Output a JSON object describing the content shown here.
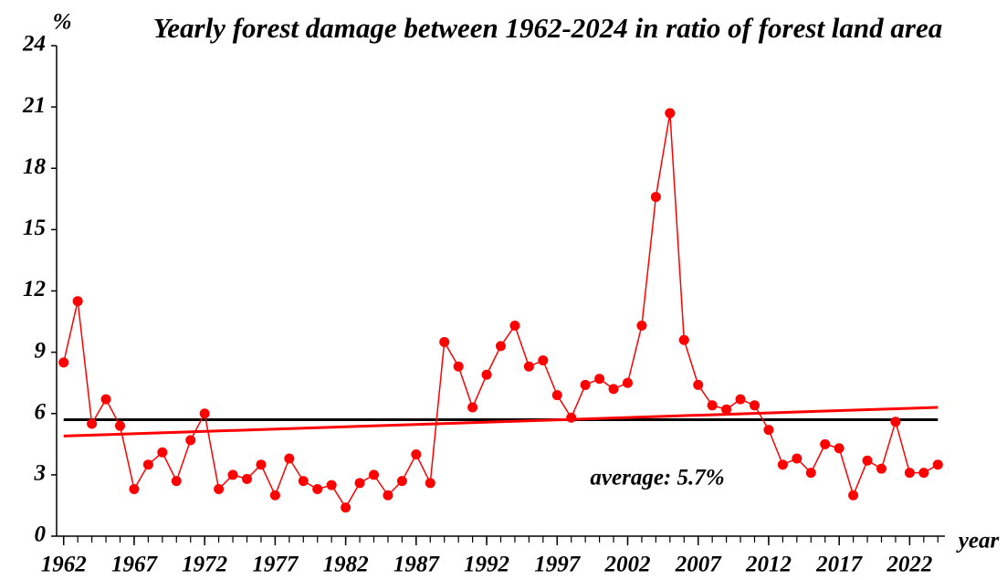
{
  "chart_data": {
    "type": "line",
    "title": "Yearly forest damage  between 1962-2024 in ratio of forest land area",
    "y_label": "%",
    "x_label": "year",
    "x": [
      1962,
      1963,
      1964,
      1965,
      1966,
      1967,
      1968,
      1969,
      1970,
      1971,
      1972,
      1973,
      1974,
      1975,
      1976,
      1977,
      1978,
      1979,
      1980,
      1981,
      1982,
      1983,
      1984,
      1985,
      1986,
      1987,
      1988,
      1989,
      1990,
      1991,
      1992,
      1993,
      1994,
      1995,
      1996,
      1997,
      1998,
      1999,
      2000,
      2001,
      2002,
      2003,
      2004,
      2005,
      2006,
      2007,
      2008,
      2009,
      2010,
      2011,
      2012,
      2013,
      2014,
      2015,
      2016,
      2017,
      2018,
      2019,
      2020,
      2021,
      2022,
      2023,
      2024
    ],
    "series": [
      {
        "color": "#ff0000",
        "values": [
          8.5,
          11.5,
          5.5,
          6.7,
          5.4,
          2.3,
          3.5,
          4.1,
          2.7,
          4.7,
          6.0,
          2.3,
          3.0,
          2.8,
          3.5,
          2.0,
          3.8,
          2.7,
          2.3,
          2.5,
          1.4,
          2.6,
          3.0,
          2.0,
          2.7,
          4.0,
          2.6,
          9.5,
          8.3,
          6.3,
          7.9,
          9.3,
          10.3,
          8.3,
          8.6,
          6.9,
          5.8,
          7.4,
          7.7,
          7.2,
          7.5,
          10.3,
          16.6,
          20.7,
          9.6,
          7.4,
          6.4,
          6.2,
          6.7,
          6.4,
          5.2,
          3.5,
          3.8,
          3.1,
          4.5,
          4.3,
          2.0,
          3.7,
          3.3,
          5.6,
          3.1,
          3.1,
          3.5
        ]
      }
    ],
    "trend": {
      "color": "#ff0000",
      "x": [
        1962,
        2024
      ],
      "values": [
        4.9,
        6.3
      ]
    },
    "average": 5.7,
    "average_color": "#000000",
    "average_label": "average: 5.7%",
    "xlim": [
      1961.5,
      2024.5
    ],
    "xticks": [
      1962,
      1967,
      1972,
      1977,
      1982,
      1987,
      1992,
      1997,
      2002,
      2007,
      2012,
      2017,
      2022
    ],
    "ylim": [
      0,
      24
    ],
    "yticks": [
      0,
      3,
      6,
      9,
      12,
      15,
      18,
      21,
      24
    ]
  }
}
